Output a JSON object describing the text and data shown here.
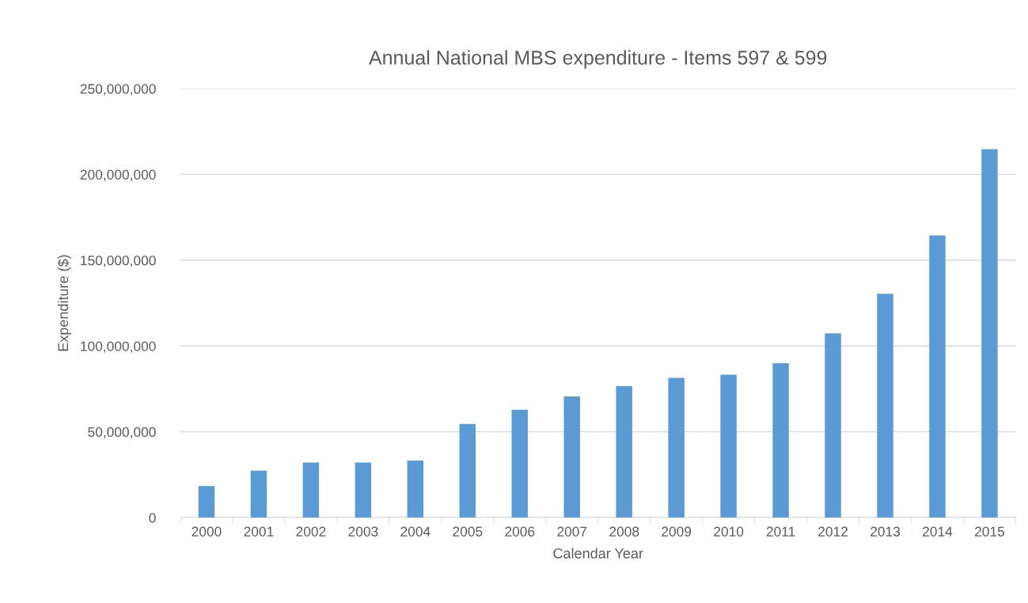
{
  "chart_data": {
    "type": "bar",
    "title": "Annual National MBS expenditure - Items 597 & 599",
    "xlabel": "Calendar Year",
    "ylabel": "Expenditure ($)",
    "categories": [
      "2000",
      "2001",
      "2002",
      "2003",
      "2004",
      "2005",
      "2006",
      "2007",
      "2008",
      "2009",
      "2010",
      "2011",
      "2012",
      "2013",
      "2014",
      "2015"
    ],
    "values": [
      18400000,
      27300000,
      32100000,
      32100000,
      33200000,
      54500000,
      62800000,
      70600000,
      76600000,
      81400000,
      83300000,
      89900000,
      107400000,
      130400000,
      164400000,
      214700000
    ],
    "color": "#5b9bd5",
    "ylim": [
      0,
      250000000
    ],
    "yticks": [
      0,
      {
        "value": 50000000,
        "label": "50,000,000"
      },
      {
        "value": 100000000,
        "label": "100,000,000"
      },
      {
        "value": 150000000,
        "label": "150,000,000"
      },
      {
        "value": 200000000,
        "label": "200,000,000"
      },
      {
        "value": 250000000,
        "label": "250,000,000"
      }
    ],
    "grid": "y",
    "legend": false
  }
}
